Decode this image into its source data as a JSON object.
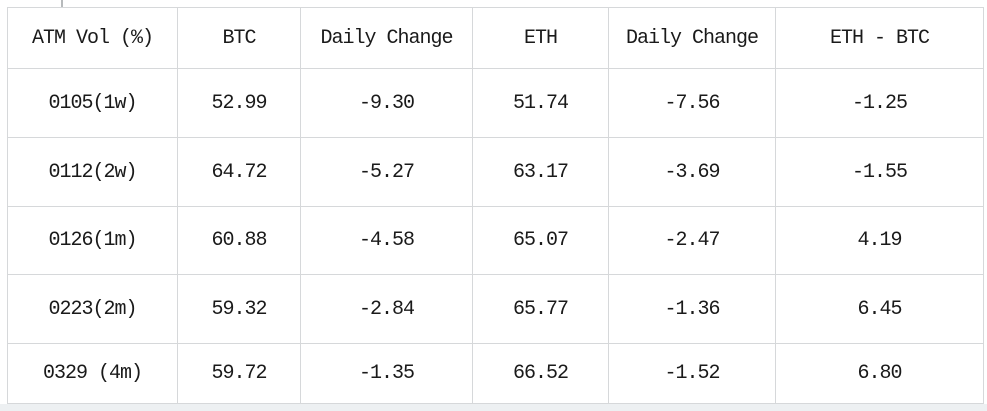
{
  "colors": {
    "border": "#d6d8da",
    "text": "#1a1a1a",
    "background": "#ffffff",
    "bottom_band": "#edf0f2"
  },
  "table": {
    "header": [
      "ATM Vol (%)",
      "BTC",
      "Daily Change",
      "ETH",
      "Daily Change",
      "ETH - BTC"
    ],
    "rows": [
      [
        "0105(1w)",
        "52.99",
        "-9.30",
        "51.74",
        "-7.56",
        "-1.25"
      ],
      [
        "0112(2w)",
        "64.72",
        "-5.27",
        "63.17",
        "-3.69",
        "-1.55"
      ],
      [
        "0126(1m)",
        "60.88",
        "-4.58",
        "65.07",
        "-2.47",
        "4.19"
      ],
      [
        "0223(2m)",
        "59.32",
        "-2.84",
        "65.77",
        "-1.36",
        "6.45"
      ],
      [
        "0329 (4m)",
        "59.72",
        "-1.35",
        "66.52",
        "-1.52",
        "6.80"
      ]
    ]
  },
  "chart_data": {
    "type": "table",
    "title": "ATM Vol (%)",
    "columns": [
      "ATM Vol (%)",
      "BTC",
      "Daily Change",
      "ETH",
      "Daily Change",
      "ETH - BTC"
    ],
    "rows": [
      {
        "tenor": "0105(1w)",
        "btc": 52.99,
        "btc_daily_change": -9.3,
        "eth": 51.74,
        "eth_daily_change": -7.56,
        "eth_minus_btc": -1.25
      },
      {
        "tenor": "0112(2w)",
        "btc": 64.72,
        "btc_daily_change": -5.27,
        "eth": 63.17,
        "eth_daily_change": -3.69,
        "eth_minus_btc": -1.55
      },
      {
        "tenor": "0126(1m)",
        "btc": 60.88,
        "btc_daily_change": -4.58,
        "eth": 65.07,
        "eth_daily_change": -2.47,
        "eth_minus_btc": 4.19
      },
      {
        "tenor": "0223(2m)",
        "btc": 59.32,
        "btc_daily_change": -2.84,
        "eth": 65.77,
        "eth_daily_change": -1.36,
        "eth_minus_btc": 6.45
      },
      {
        "tenor": "0329 (4m)",
        "btc": 59.72,
        "btc_daily_change": -1.35,
        "eth": 66.52,
        "eth_daily_change": -1.52,
        "eth_minus_btc": 6.8
      }
    ]
  }
}
